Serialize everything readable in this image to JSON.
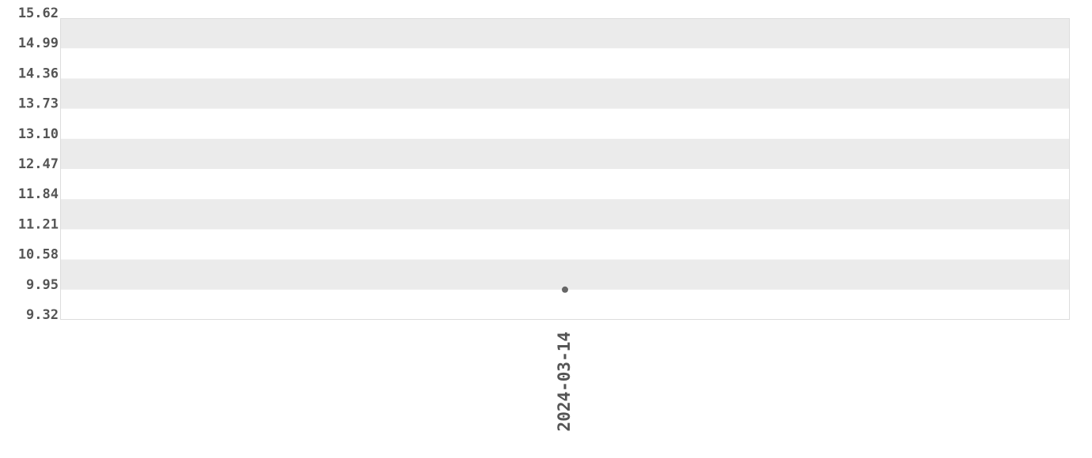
{
  "chart_data": {
    "type": "scatter",
    "title": "",
    "xlabel": "",
    "ylabel": "",
    "x_categories": [
      "2024-03-14"
    ],
    "points": [
      {
        "x": "2024-03-14",
        "y": 9.95
      }
    ],
    "ylim": [
      9.32,
      15.62
    ],
    "y_ticks": [
      "15.62",
      "14.99",
      "14.36",
      "13.73",
      "13.10",
      "12.47",
      "11.84",
      "11.21",
      "10.58",
      "9.95",
      "9.32"
    ],
    "grid": "alternating horizontal bands",
    "legend": "none",
    "colors": {
      "band": "#ebebeb",
      "point": "#666666",
      "text": "#555555",
      "border": "#dddddd"
    }
  }
}
